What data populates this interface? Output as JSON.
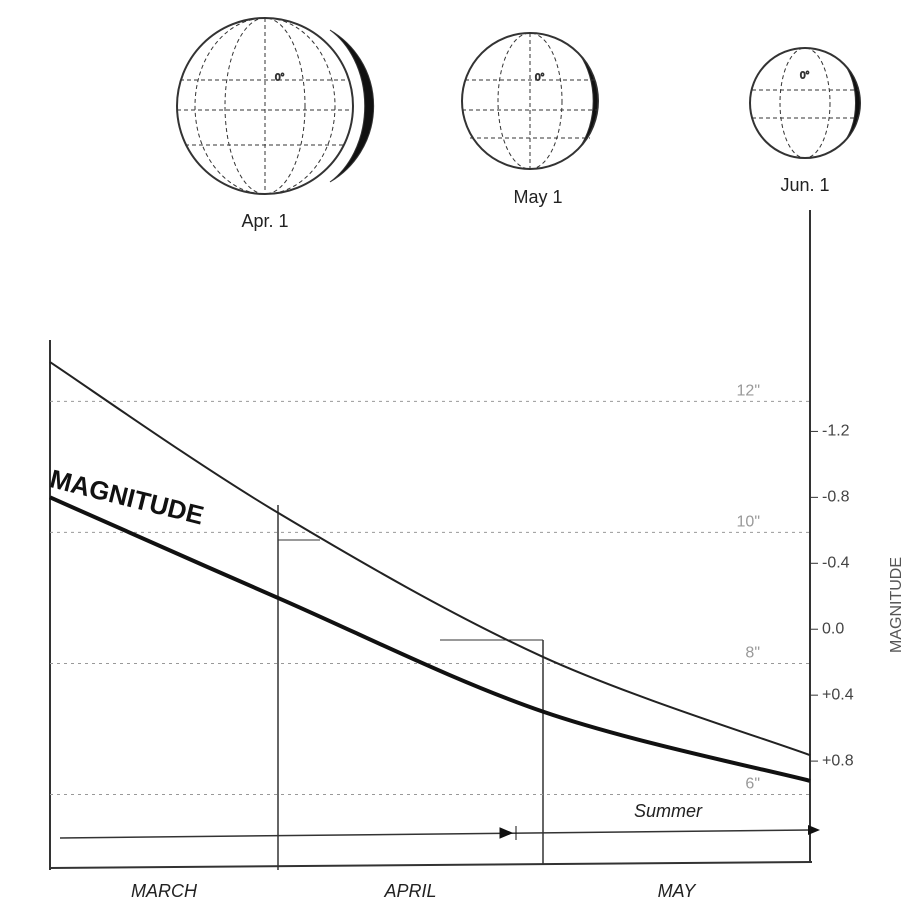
{
  "chart_data": {
    "type": "line",
    "categories": [
      "MARCH",
      "APRIL",
      "MAY"
    ],
    "x": [
      null,
      "Apr. 1",
      "May 1",
      "Jun. 1"
    ],
    "series": [
      {
        "name": "MAGNITUDE",
        "color": "#111111",
        "values": [
          -0.8,
          -0.19,
          0.5,
          0.92
        ]
      },
      {
        "color": "#222222",
        "axis": "y2",
        "values": [
          12.6,
          10.3,
          8.1,
          6.6
        ]
      }
    ],
    "ylabel": "MAGNITUDE",
    "ylim": [
      1.4,
      -1.7
    ],
    "yticks": [
      {
        "value": -1.2,
        "label": "-1.2"
      },
      {
        "value": -0.8,
        "label": "-0.8"
      },
      {
        "value": -0.4,
        "label": "-0.4"
      },
      {
        "value": 0.0,
        "label": "0.0"
      },
      {
        "value": 0.4,
        "label": "+0.4"
      },
      {
        "value": 0.8,
        "label": "+0.8"
      }
    ],
    "y2lim": [
      5,
      12.8
    ],
    "y2ticks": [
      {
        "value": 12,
        "label": "12\""
      },
      {
        "value": 10,
        "label": "10\""
      },
      {
        "value": 8,
        "label": "8\""
      },
      {
        "value": 6,
        "label": "6\""
      }
    ],
    "annotation": "Summer",
    "grid": true
  }
}
